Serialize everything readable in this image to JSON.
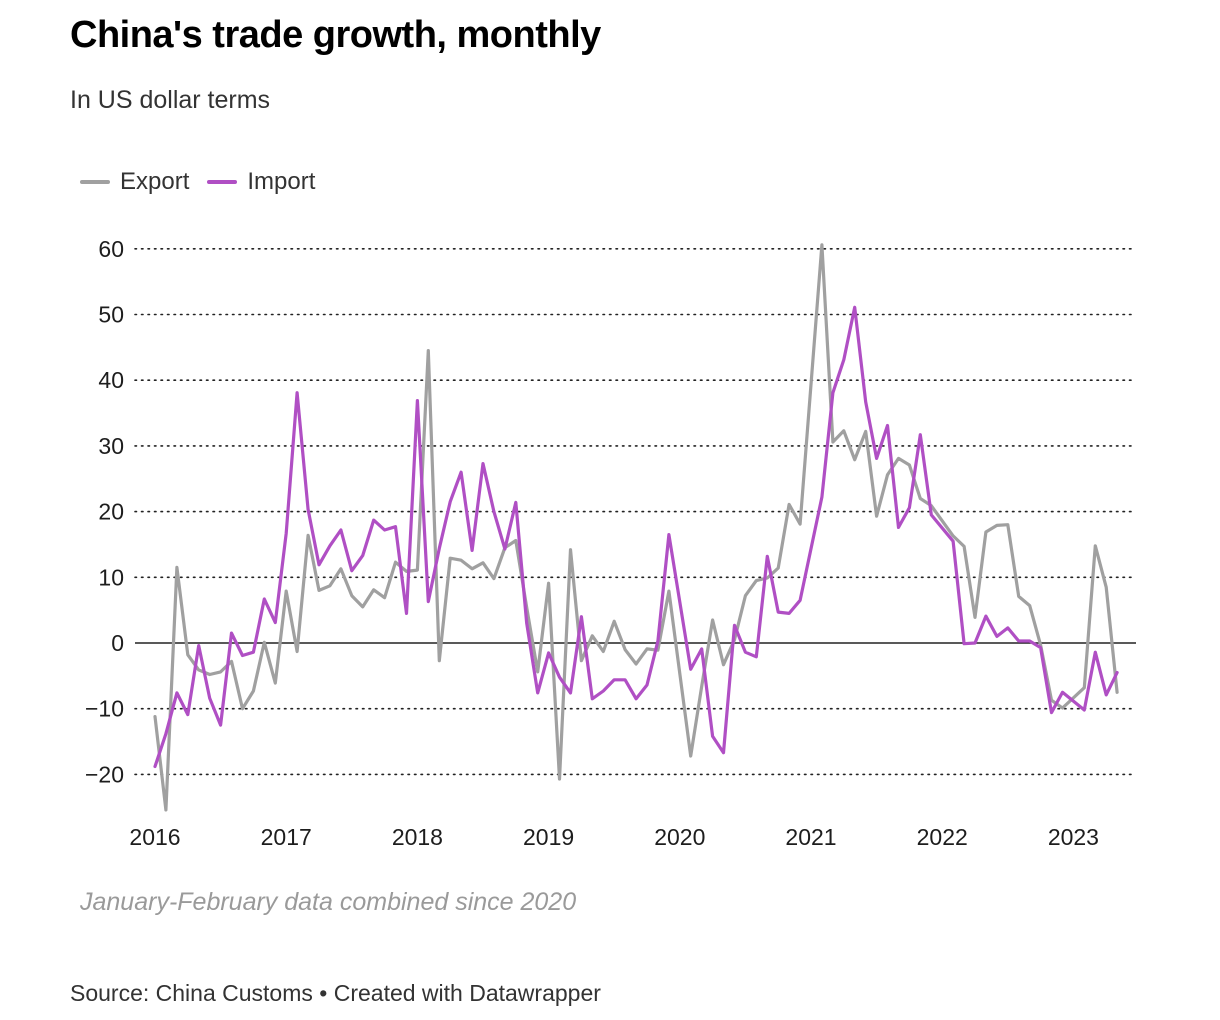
{
  "header": {
    "title": "China's trade growth, monthly",
    "subtitle": "In US dollar terms"
  },
  "footer": {
    "note": "January-February data combined since 2020",
    "source": "Source: China Customs • Created with Datawrapper"
  },
  "colors": {
    "export": "#a0a0a0",
    "import": "#b04fc4",
    "grid": "#222222"
  },
  "chart_data": {
    "type": "line",
    "title": "China's trade growth, monthly",
    "subtitle": "In US dollar terms",
    "xlabel": "",
    "ylabel": "",
    "ylim": [
      -20,
      60
    ],
    "y_ticks": [
      60,
      50,
      40,
      30,
      20,
      10,
      0,
      -10,
      -20
    ],
    "y_tick_labels": [
      "60",
      "50",
      "40",
      "30",
      "20",
      "10",
      "0",
      "−10",
      "−20"
    ],
    "x_ticks": [
      2016,
      2017,
      2018,
      2019,
      2020,
      2021,
      2022,
      2023
    ],
    "x_tick_labels": [
      "2016",
      "2017",
      "2018",
      "2019",
      "2020",
      "2021",
      "2022",
      "2023"
    ],
    "legend_position": "top-left",
    "grid": "horizontal dotted",
    "series": [
      {
        "name": "Export",
        "color": "#a0a0a0",
        "points": [
          [
            2016.0,
            -11.2
          ],
          [
            2016.083,
            -25.4
          ],
          [
            2016.167,
            11.5
          ],
          [
            2016.25,
            -1.8
          ],
          [
            2016.333,
            -4.1
          ],
          [
            2016.417,
            -4.8
          ],
          [
            2016.5,
            -4.4
          ],
          [
            2016.583,
            -2.8
          ],
          [
            2016.667,
            -10.0
          ],
          [
            2016.75,
            -7.3
          ],
          [
            2016.833,
            0.1
          ],
          [
            2016.917,
            -6.1
          ],
          [
            2017.0,
            7.9
          ],
          [
            2017.083,
            -1.3
          ],
          [
            2017.167,
            16.4
          ],
          [
            2017.25,
            8.0
          ],
          [
            2017.333,
            8.7
          ],
          [
            2017.417,
            11.3
          ],
          [
            2017.5,
            7.2
          ],
          [
            2017.583,
            5.5
          ],
          [
            2017.667,
            8.1
          ],
          [
            2017.75,
            6.9
          ],
          [
            2017.833,
            12.3
          ],
          [
            2017.917,
            10.9
          ],
          [
            2018.0,
            11.1
          ],
          [
            2018.083,
            44.5
          ],
          [
            2018.167,
            -2.7
          ],
          [
            2018.25,
            12.9
          ],
          [
            2018.333,
            12.6
          ],
          [
            2018.417,
            11.3
          ],
          [
            2018.5,
            12.2
          ],
          [
            2018.583,
            9.8
          ],
          [
            2018.667,
            14.5
          ],
          [
            2018.75,
            15.6
          ],
          [
            2018.833,
            5.4
          ],
          [
            2018.917,
            -4.4
          ],
          [
            2019.0,
            9.1
          ],
          [
            2019.083,
            -20.7
          ],
          [
            2019.167,
            14.2
          ],
          [
            2019.25,
            -2.7
          ],
          [
            2019.333,
            1.1
          ],
          [
            2019.417,
            -1.3
          ],
          [
            2019.5,
            3.3
          ],
          [
            2019.583,
            -1.0
          ],
          [
            2019.667,
            -3.2
          ],
          [
            2019.75,
            -0.9
          ],
          [
            2019.833,
            -1.1
          ],
          [
            2019.917,
            7.9
          ],
          [
            2020.083,
            -17.2
          ],
          [
            2020.167,
            -6.6
          ],
          [
            2020.25,
            3.5
          ],
          [
            2020.333,
            -3.3
          ],
          [
            2020.417,
            0.5
          ],
          [
            2020.5,
            7.2
          ],
          [
            2020.583,
            9.5
          ],
          [
            2020.667,
            9.9
          ],
          [
            2020.75,
            11.4
          ],
          [
            2020.833,
            21.1
          ],
          [
            2020.917,
            18.1
          ],
          [
            2021.083,
            60.6
          ],
          [
            2021.167,
            30.6
          ],
          [
            2021.25,
            32.3
          ],
          [
            2021.333,
            27.9
          ],
          [
            2021.417,
            32.2
          ],
          [
            2021.5,
            19.3
          ],
          [
            2021.583,
            25.6
          ],
          [
            2021.667,
            28.1
          ],
          [
            2021.75,
            27.1
          ],
          [
            2021.833,
            22.0
          ],
          [
            2021.917,
            20.9
          ],
          [
            2022.083,
            16.3
          ],
          [
            2022.167,
            14.7
          ],
          [
            2022.25,
            3.9
          ],
          [
            2022.333,
            16.9
          ],
          [
            2022.417,
            17.9
          ],
          [
            2022.5,
            18.0
          ],
          [
            2022.583,
            7.1
          ],
          [
            2022.667,
            5.7
          ],
          [
            2022.75,
            -0.3
          ],
          [
            2022.833,
            -8.7
          ],
          [
            2022.917,
            -9.9
          ],
          [
            2023.083,
            -6.8
          ],
          [
            2023.167,
            14.8
          ],
          [
            2023.25,
            8.5
          ],
          [
            2023.333,
            -7.5
          ]
        ]
      },
      {
        "name": "Import",
        "color": "#b04fc4",
        "points": [
          [
            2016.0,
            -18.8
          ],
          [
            2016.083,
            -13.8
          ],
          [
            2016.167,
            -7.6
          ],
          [
            2016.25,
            -10.9
          ],
          [
            2016.333,
            -0.4
          ],
          [
            2016.417,
            -8.4
          ],
          [
            2016.5,
            -12.5
          ],
          [
            2016.583,
            1.5
          ],
          [
            2016.667,
            -1.9
          ],
          [
            2016.75,
            -1.4
          ],
          [
            2016.833,
            6.7
          ],
          [
            2016.917,
            3.1
          ],
          [
            2017.0,
            16.7
          ],
          [
            2017.083,
            38.1
          ],
          [
            2017.167,
            20.3
          ],
          [
            2017.25,
            11.9
          ],
          [
            2017.333,
            14.8
          ],
          [
            2017.417,
            17.2
          ],
          [
            2017.5,
            11.0
          ],
          [
            2017.583,
            13.3
          ],
          [
            2017.667,
            18.7
          ],
          [
            2017.75,
            17.2
          ],
          [
            2017.833,
            17.7
          ],
          [
            2017.917,
            4.5
          ],
          [
            2018.0,
            36.9
          ],
          [
            2018.083,
            6.3
          ],
          [
            2018.167,
            14.4
          ],
          [
            2018.25,
            21.5
          ],
          [
            2018.333,
            26.0
          ],
          [
            2018.417,
            14.1
          ],
          [
            2018.5,
            27.3
          ],
          [
            2018.583,
            20.0
          ],
          [
            2018.667,
            14.3
          ],
          [
            2018.75,
            21.4
          ],
          [
            2018.833,
            3.0
          ],
          [
            2018.917,
            -7.6
          ],
          [
            2019.0,
            -1.5
          ],
          [
            2019.083,
            -5.2
          ],
          [
            2019.167,
            -7.6
          ],
          [
            2019.25,
            4.0
          ],
          [
            2019.333,
            -8.5
          ],
          [
            2019.417,
            -7.3
          ],
          [
            2019.5,
            -5.6
          ],
          [
            2019.583,
            -5.6
          ],
          [
            2019.667,
            -8.5
          ],
          [
            2019.75,
            -6.4
          ],
          [
            2019.833,
            0.3
          ],
          [
            2019.917,
            16.5
          ],
          [
            2020.083,
            -4.0
          ],
          [
            2020.167,
            -0.9
          ],
          [
            2020.25,
            -14.2
          ],
          [
            2020.333,
            -16.7
          ],
          [
            2020.417,
            2.7
          ],
          [
            2020.5,
            -1.4
          ],
          [
            2020.583,
            -2.1
          ],
          [
            2020.667,
            13.2
          ],
          [
            2020.75,
            4.7
          ],
          [
            2020.833,
            4.5
          ],
          [
            2020.917,
            6.5
          ],
          [
            2021.083,
            22.2
          ],
          [
            2021.167,
            38.1
          ],
          [
            2021.25,
            43.1
          ],
          [
            2021.333,
            51.1
          ],
          [
            2021.417,
            36.7
          ],
          [
            2021.5,
            28.1
          ],
          [
            2021.583,
            33.1
          ],
          [
            2021.667,
            17.6
          ],
          [
            2021.75,
            20.6
          ],
          [
            2021.833,
            31.7
          ],
          [
            2021.917,
            19.5
          ],
          [
            2022.083,
            15.5
          ],
          [
            2022.167,
            -0.1
          ],
          [
            2022.25,
            0.0
          ],
          [
            2022.333,
            4.1
          ],
          [
            2022.417,
            1.0
          ],
          [
            2022.5,
            2.3
          ],
          [
            2022.583,
            0.3
          ],
          [
            2022.667,
            0.3
          ],
          [
            2022.75,
            -0.7
          ],
          [
            2022.833,
            -10.6
          ],
          [
            2022.917,
            -7.5
          ],
          [
            2023.083,
            -10.2
          ],
          [
            2023.167,
            -1.4
          ],
          [
            2023.25,
            -7.9
          ],
          [
            2023.333,
            -4.5
          ]
        ]
      }
    ]
  }
}
